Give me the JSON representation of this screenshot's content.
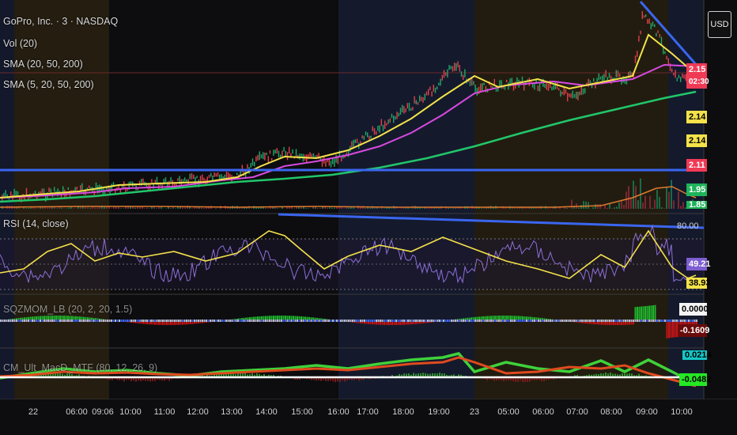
{
  "header": {
    "symbol_title": "GoPro, Inc. · 3 · NASDAQ",
    "currency_button": "USD"
  },
  "legends": {
    "vol": "Vol (20)",
    "sma1": "SMA (20, 50, 200)",
    "sma2": "SMA (5, 20, 50, 200)",
    "rsi": "RSI (14, close)",
    "sqz": "SQZMOM_LB (20, 2, 20, 1.5)",
    "macd": "CM_Ult_MacD_MTF (80, 12, 26, 9)"
  },
  "price_scale": {
    "last_price": "2.15",
    "countdown": "02:30",
    "sma_a": "2.14",
    "sma_b": "2.14",
    "level": "2.11",
    "low_a": "1.95",
    "low_b": "1.85"
  },
  "rsi_scale": {
    "upper": "80.00",
    "value": "49.21",
    "ma": "38.93"
  },
  "sqz_scale": {
    "zero": "0.0000",
    "value": "-0.1609"
  },
  "macd_scale": {
    "signal": "0.0214",
    "value": "-0.0482"
  },
  "time_axis": [
    "22",
    "06:00",
    "09:06",
    "10:00",
    "11:00",
    "12:00",
    "13:00",
    "14:00",
    "15:00",
    "16:00",
    "17:00",
    "18:00",
    "19:00",
    "23",
    "05:00",
    "06:00",
    "07:00",
    "08:00",
    "09:00",
    "10:00"
  ],
  "colors": {
    "background": "#0d0d0f",
    "session_pre": "#2a2213",
    "session_post": "#14182b",
    "trendline": "#3a66f0",
    "sma_yellow": "#f4e24a",
    "sma_magenta": "#d84ae0",
    "sma_green": "#21c66a",
    "rsi_line": "#8c6fd6",
    "rsi_ma": "#f4e24a",
    "sqz_green": "#1fb32c",
    "sqz_red": "#c41414",
    "macd_green": "#3fd23a",
    "macd_red": "#e04a1e"
  }
}
